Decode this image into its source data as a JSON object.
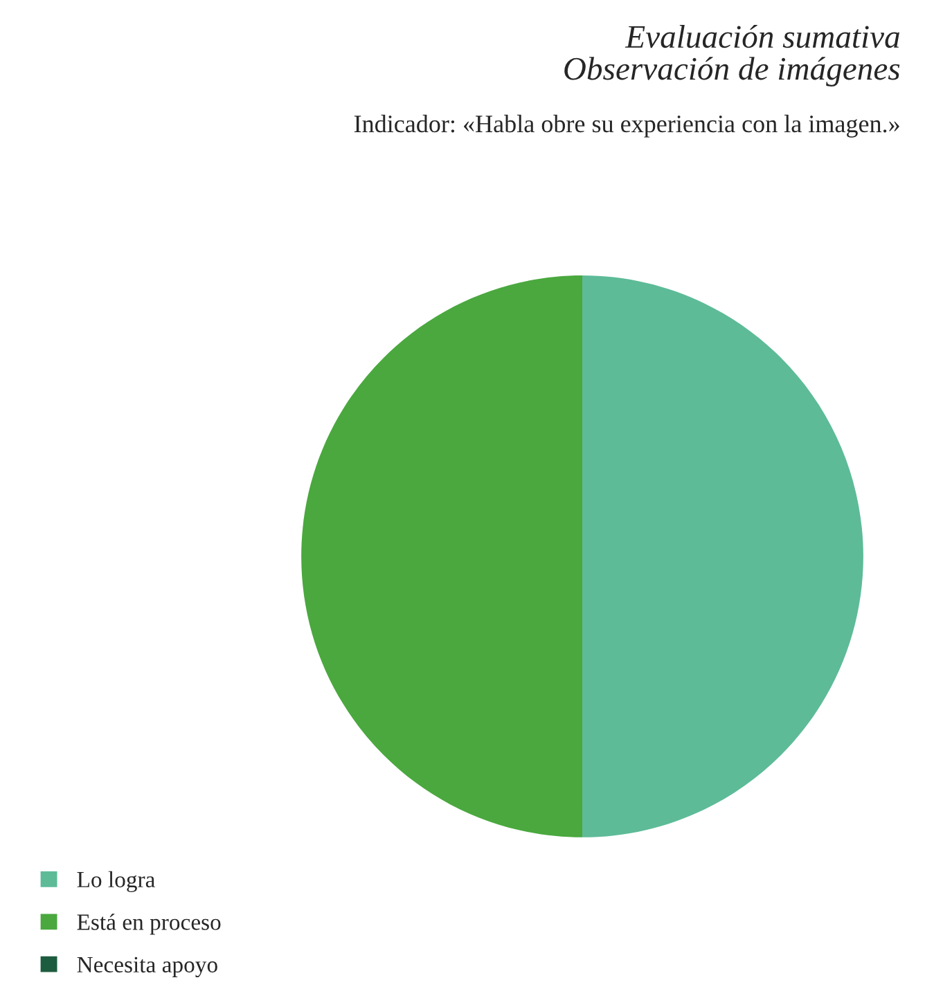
{
  "chart_data": {
    "type": "pie",
    "title": "Evaluación sumativa\nObservación de imágenes",
    "subtitle": "Indicador: «Habla obre su experiencia con la imagen.»",
    "categories": [
      "Lo logra",
      "Está en proceso",
      "Necesita apoyo"
    ],
    "values": [
      50,
      50,
      0
    ],
    "colors": [
      "#5dbb98",
      "#4aa83e",
      "#1d5c3e"
    ],
    "legend": "bottom left"
  }
}
